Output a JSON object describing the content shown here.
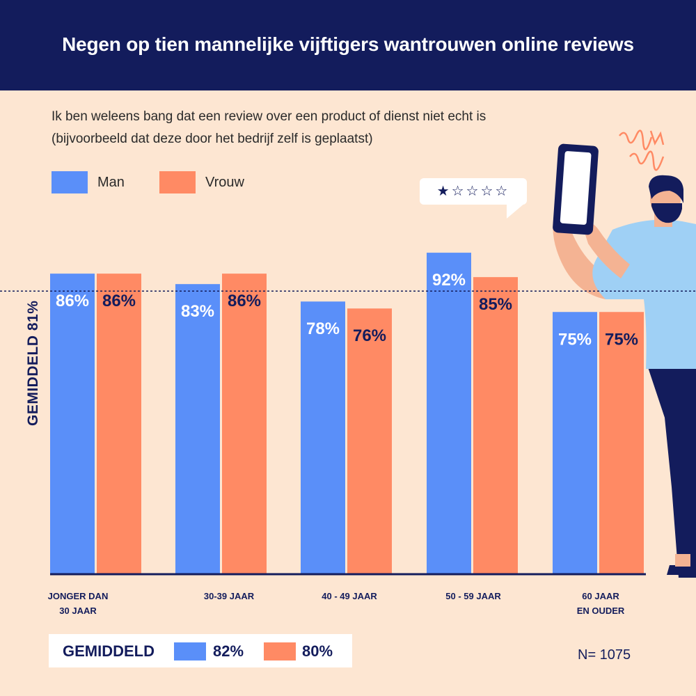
{
  "header": {
    "title": "Negen op tien mannelijke vijftigers wantrouwen online reviews"
  },
  "subtitle": {
    "line1": "Ik ben weleens bang dat een review over een product of dienst niet echt is",
    "line2": "(bijvoorbeeld dat deze door het bedrijf zelf is geplaatst)"
  },
  "legend": {
    "man": "Man",
    "vrouw": "Vrouw"
  },
  "bubble": {
    "rating": "★☆☆☆☆"
  },
  "colors": {
    "man": "#5a8ff9",
    "vrouw": "#ff8a64",
    "navy": "#131c5c",
    "background": "#fde6d2"
  },
  "average_line_label": "GEMIDDELD  81%",
  "footer": {
    "average_label": "GEMIDDELD",
    "average_man": "82%",
    "average_vrouw": "80%",
    "sample": "N= 1075"
  },
  "chart_data": {
    "type": "bar",
    "categories": [
      "JONGER DAN\n30 JAAR",
      "30-39 JAAR",
      "40 - 49 JAAR",
      "50 - 59 JAAR",
      "60 JAAR\nEN  OUDER"
    ],
    "series": [
      {
        "name": "Man",
        "values": [
          86,
          83,
          78,
          92,
          75
        ],
        "labels": [
          "86%",
          "83%",
          "78%",
          "92%",
          "75%"
        ],
        "color": "#5a8ff9"
      },
      {
        "name": "Vrouw",
        "values": [
          86,
          86,
          76,
          85,
          75
        ],
        "labels": [
          "86%",
          "86%",
          "76%",
          "85%",
          "75%"
        ],
        "color": "#ff8a64"
      }
    ],
    "average": 81,
    "ylim": [
      0,
      100
    ],
    "grid": false,
    "legend_position": "top-left"
  }
}
